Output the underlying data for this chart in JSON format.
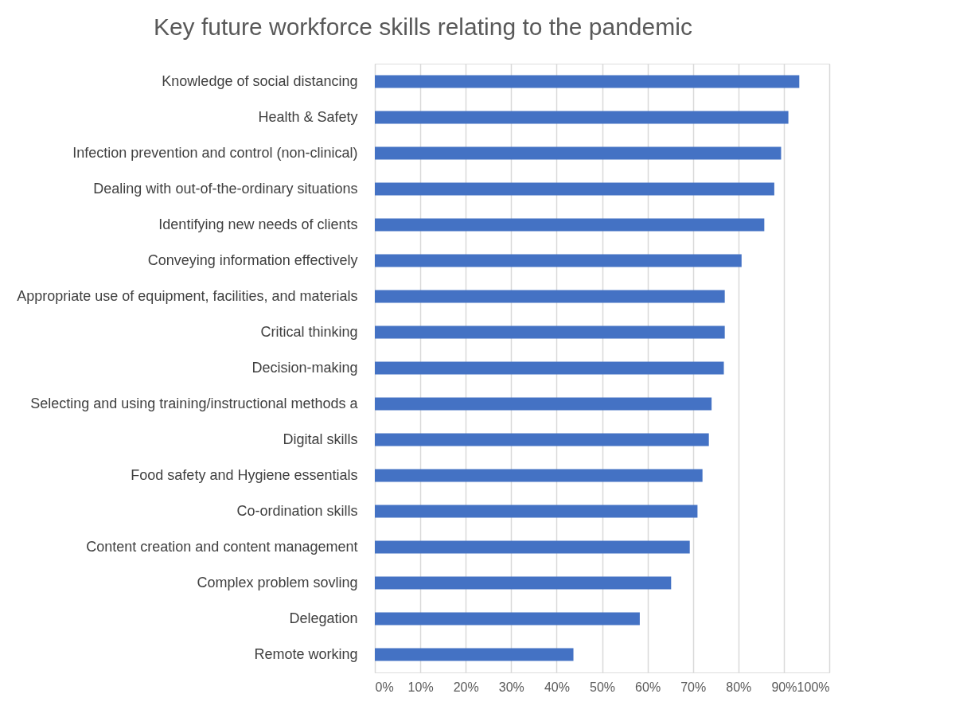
{
  "chart_data": {
    "type": "bar",
    "orientation": "horizontal",
    "title": "Key future workforce skills relating to the pandemic",
    "categories": [
      "Knowledge of social distancing",
      "Health & Safety",
      "Infection prevention and control (non-clinical)",
      "Dealing with out-of-the-ordinary situations",
      "Identifying new needs of clients",
      "Conveying information effectively",
      "Appropriate use of equipment, facilities, and materials",
      "Critical thinking",
      "Decision-making",
      "Selecting and using training/instructional methods a",
      "Digital skills",
      "Food safety and Hygiene essentials",
      "Co-ordination skills",
      "Content creation and content management",
      "Complex problem sovling",
      "Delegation",
      "Remote working"
    ],
    "values": [
      93.4,
      91.0,
      89.4,
      87.9,
      85.7,
      80.7,
      77.0,
      77.0,
      76.8,
      74.1,
      73.5,
      72.1,
      71.0,
      69.3,
      65.2,
      58.3,
      43.7
    ],
    "color": "#4472c4",
    "xlim": [
      0,
      100
    ],
    "xticks": [
      {
        "value": 0,
        "label": "0%"
      },
      {
        "value": 10,
        "label": "10%"
      },
      {
        "value": 20,
        "label": "20%"
      },
      {
        "value": 30,
        "label": "30%"
      },
      {
        "value": 40,
        "label": "40%"
      },
      {
        "value": 50,
        "label": "50%"
      },
      {
        "value": 60,
        "label": "60%"
      },
      {
        "value": 70,
        "label": "70%"
      },
      {
        "value": 80,
        "label": "80%"
      },
      {
        "value": 90,
        "label": "90%"
      },
      {
        "value": 100,
        "label": "100%"
      }
    ],
    "grid": "x"
  }
}
